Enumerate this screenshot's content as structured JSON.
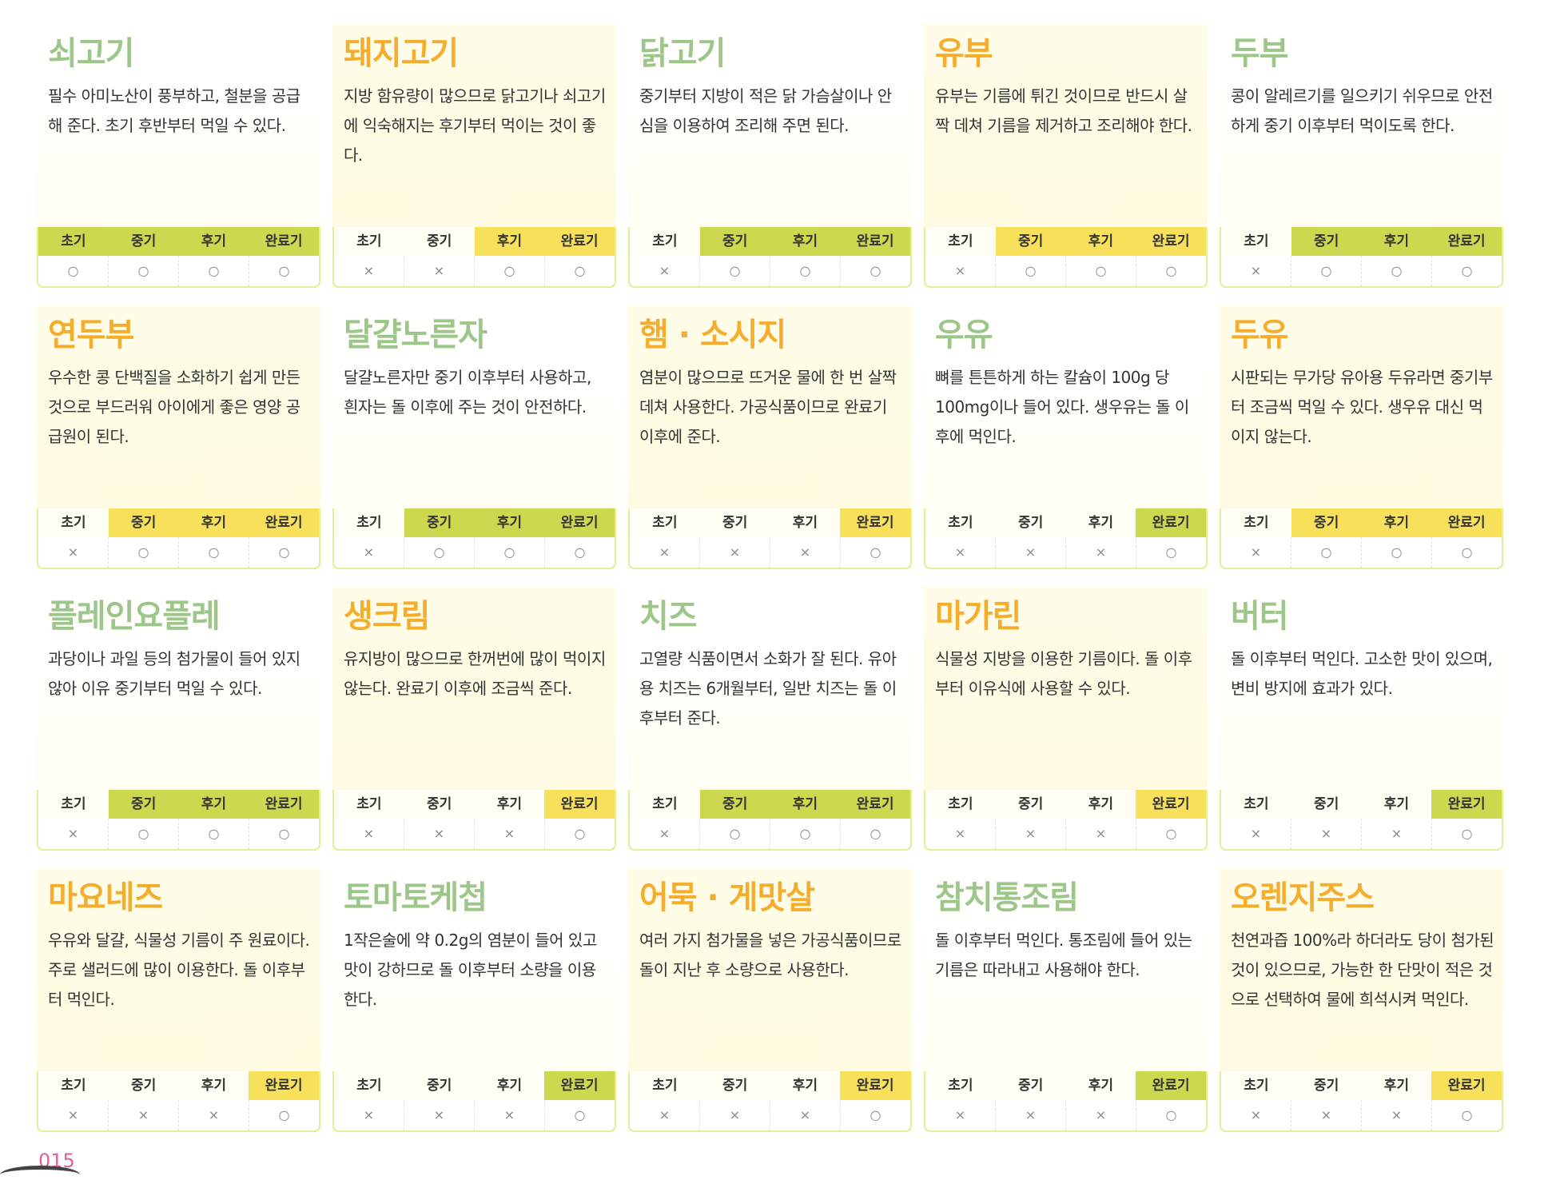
{
  "stages": [
    "초기",
    "중기",
    "후기",
    "완료기"
  ],
  "colors": {
    "green_title": "#9cc68a",
    "orange_title": "#f5ad2e",
    "green_highlight": "#ccd84e",
    "yellow_highlight": "#f7e15a",
    "page_number": "#e0609a"
  },
  "items": [
    {
      "title": "쇠고기",
      "theme": "green",
      "desc": "필수 아미노산이 풍부하고, 철분을 공급해 준다. 초기 후반부터 먹일 수 있다.",
      "marks": [
        "○",
        "○",
        "○",
        "○"
      ]
    },
    {
      "title": "돼지고기",
      "theme": "orange",
      "desc": "지방 함유량이 많으므로 닭고기나 쇠고기에 익숙해지는 후기부터 먹이는 것이 좋다.",
      "marks": [
        "×",
        "×",
        "○",
        "○"
      ]
    },
    {
      "title": "닭고기",
      "theme": "green",
      "desc": "중기부터 지방이 적은 닭 가슴살이나 안심을 이용하여 조리해 주면 된다.",
      "marks": [
        "×",
        "○",
        "○",
        "○"
      ]
    },
    {
      "title": "유부",
      "theme": "orange",
      "desc": "유부는 기름에 튀긴 것이므로 반드시 살짝 데쳐 기름을 제거하고 조리해야 한다.",
      "marks": [
        "×",
        "○",
        "○",
        "○"
      ]
    },
    {
      "title": "두부",
      "theme": "green",
      "desc": "콩이 알레르기를 일으키기 쉬우므로 안전하게 중기 이후부터 먹이도록 한다.",
      "marks": [
        "×",
        "○",
        "○",
        "○"
      ]
    },
    {
      "title": "연두부",
      "theme": "orange",
      "desc": "우수한 콩 단백질을 소화하기 쉽게 만든 것으로 부드러워 아이에게 좋은 영양 공급원이 된다.",
      "marks": [
        "×",
        "○",
        "○",
        "○"
      ]
    },
    {
      "title": "달걀노른자",
      "theme": "green",
      "desc": "달걀노른자만 중기 이후부터 사용하고, 흰자는 돌 이후에 주는 것이 안전하다.",
      "marks": [
        "×",
        "○",
        "○",
        "○"
      ]
    },
    {
      "title": "햄 · 소시지",
      "theme": "orange",
      "desc": "염분이 많으므로 뜨거운 물에 한 번 살짝 데쳐 사용한다. 가공식품이므로 완료기 이후에 준다.",
      "marks": [
        "×",
        "×",
        "×",
        "○"
      ]
    },
    {
      "title": "우유",
      "theme": "green",
      "desc": "뼈를 튼튼하게 하는 칼슘이 100g 당 100mg이나 들어 있다. 생우유는 돌 이후에 먹인다.",
      "marks": [
        "×",
        "×",
        "×",
        "○"
      ]
    },
    {
      "title": "두유",
      "theme": "orange",
      "desc": "시판되는 무가당 유아용 두유라면 중기부터 조금씩 먹일 수 있다. 생우유 대신 먹이지 않는다.",
      "marks": [
        "×",
        "○",
        "○",
        "○"
      ]
    },
    {
      "title": "플레인요플레",
      "theme": "green",
      "desc": "과당이나 과일 등의 첨가물이 들어 있지 않아 이유 중기부터 먹일 수 있다.",
      "marks": [
        "×",
        "○",
        "○",
        "○"
      ]
    },
    {
      "title": "생크림",
      "theme": "orange",
      "desc": "유지방이 많으므로 한꺼번에 많이 먹이지 않는다. 완료기 이후에 조금씩 준다.",
      "marks": [
        "×",
        "×",
        "×",
        "○"
      ]
    },
    {
      "title": "치즈",
      "theme": "green",
      "desc": "고열량 식품이면서 소화가 잘 된다. 유아용 치즈는 6개월부터, 일반 치즈는 돌 이후부터 준다.",
      "marks": [
        "×",
        "○",
        "○",
        "○"
      ]
    },
    {
      "title": "마가린",
      "theme": "orange",
      "desc": "식물성 지방을 이용한 기름이다. 돌 이후부터 이유식에 사용할 수 있다.",
      "marks": [
        "×",
        "×",
        "×",
        "○"
      ]
    },
    {
      "title": "버터",
      "theme": "green",
      "desc": "돌 이후부터 먹인다. 고소한 맛이 있으며, 변비 방지에 효과가 있다.",
      "marks": [
        "×",
        "×",
        "×",
        "○"
      ]
    },
    {
      "title": "마요네즈",
      "theme": "orange",
      "desc": "우유와 달걀, 식물성 기름이 주 원료이다. 주로 샐러드에 많이 이용한다. 돌 이후부터 먹인다.",
      "marks": [
        "×",
        "×",
        "×",
        "○"
      ]
    },
    {
      "title": "토마토케첩",
      "theme": "green",
      "desc": "1작은술에 약 0.2g의 염분이 들어 있고 맛이 강하므로 돌 이후부터 소량을 이용한다.",
      "marks": [
        "×",
        "×",
        "×",
        "○"
      ]
    },
    {
      "title": "어묵 · 게맛살",
      "theme": "orange",
      "desc": "여러 가지 첨가물을 넣은 가공식품이므로 돌이 지난 후 소량으로 사용한다.",
      "marks": [
        "×",
        "×",
        "×",
        "○"
      ]
    },
    {
      "title": "참치통조림",
      "theme": "green",
      "desc": "돌 이후부터 먹인다. 통조림에 들어 있는 기름은 따라내고 사용해야 한다.",
      "marks": [
        "×",
        "×",
        "×",
        "○"
      ]
    },
    {
      "title": "오렌지주스",
      "theme": "orange",
      "desc": "천연과즙 100%라 하더라도 당이 첨가된 것이 있으므로, 가능한 한 단맛이 적은 것으로 선택하여 물에 희석시켜 먹인다.",
      "marks": [
        "×",
        "×",
        "×",
        "○"
      ]
    }
  ],
  "page_number": "015"
}
